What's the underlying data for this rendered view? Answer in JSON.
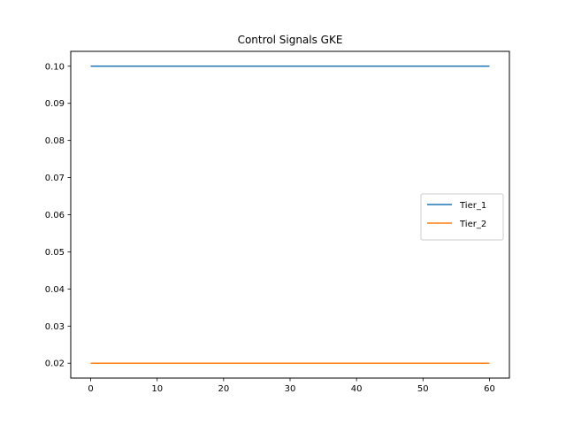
{
  "chart_data": {
    "type": "line",
    "title": "Control Signals GKE",
    "xlabel": "",
    "ylabel": "",
    "xlim": [
      -3,
      63
    ],
    "ylim": [
      0.016,
      0.104
    ],
    "xticks": [
      0,
      10,
      20,
      30,
      40,
      50,
      60
    ],
    "yticks": [
      0.02,
      0.03,
      0.04,
      0.05,
      0.06,
      0.07,
      0.08,
      0.09,
      0.1
    ],
    "xtick_labels": [
      "0",
      "10",
      "20",
      "30",
      "40",
      "50",
      "60"
    ],
    "ytick_labels": [
      "0.02",
      "0.03",
      "0.04",
      "0.05",
      "0.06",
      "0.07",
      "0.08",
      "0.09",
      "0.10"
    ],
    "grid": false,
    "legend_position": "center-right",
    "series": [
      {
        "name": "Tier_1",
        "color": "#1f77b4",
        "x": [
          0,
          60
        ],
        "y": [
          0.1,
          0.1
        ]
      },
      {
        "name": "Tier_2",
        "color": "#ff7f0e",
        "x": [
          0,
          60
        ],
        "y": [
          0.02,
          0.02
        ]
      }
    ]
  }
}
